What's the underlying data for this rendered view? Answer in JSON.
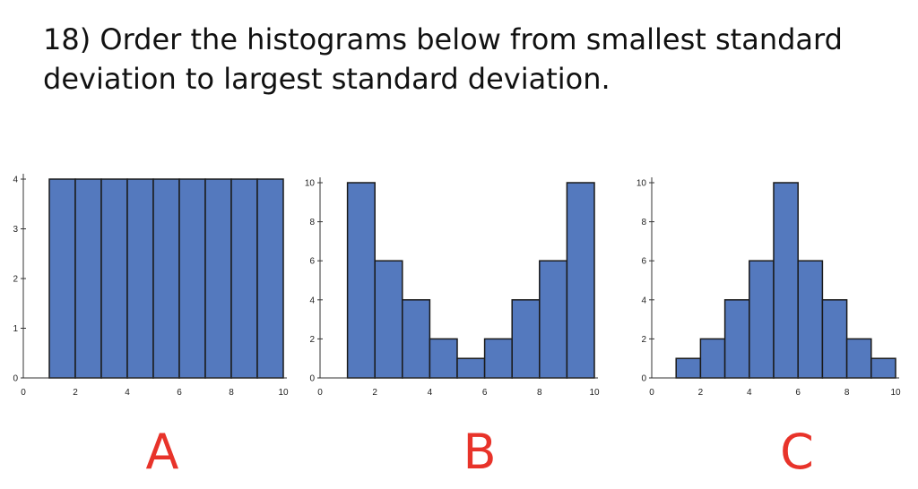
{
  "question": {
    "line1": "18)  Order the histograms below from smallest standard",
    "line2": "deviation to largest standard deviation."
  },
  "colors": {
    "bar_fill": "#5479be",
    "bar_stroke": "#1a1a1a",
    "axis": "#333333",
    "label": "#e8332a"
  },
  "chart_data": [
    {
      "type": "bar",
      "label": "A",
      "x_ticks": [
        0,
        2,
        4,
        6,
        8,
        10
      ],
      "y_ticks": [
        0,
        1,
        2,
        3,
        4
      ],
      "xlim": [
        0,
        10
      ],
      "ylim": [
        0,
        4
      ],
      "bins": [
        [
          1,
          2
        ],
        [
          2,
          3
        ],
        [
          3,
          4
        ],
        [
          4,
          5
        ],
        [
          5,
          6
        ],
        [
          6,
          7
        ],
        [
          7,
          8
        ],
        [
          8,
          9
        ],
        [
          9,
          10
        ]
      ],
      "values": [
        4,
        4,
        4,
        4,
        4,
        4,
        4,
        4,
        4
      ]
    },
    {
      "type": "bar",
      "label": "B",
      "x_ticks": [
        0,
        2,
        4,
        6,
        8,
        10
      ],
      "y_ticks": [
        0,
        2,
        4,
        6,
        8,
        10
      ],
      "xlim": [
        0,
        10
      ],
      "ylim": [
        0,
        10
      ],
      "bins": [
        [
          1,
          2
        ],
        [
          2,
          3
        ],
        [
          3,
          4
        ],
        [
          4,
          5
        ],
        [
          5,
          6
        ],
        [
          6,
          7
        ],
        [
          7,
          8
        ],
        [
          8,
          9
        ],
        [
          9,
          10
        ]
      ],
      "values": [
        10,
        6,
        4,
        2,
        1,
        2,
        4,
        6,
        10
      ]
    },
    {
      "type": "bar",
      "label": "C",
      "x_ticks": [
        0,
        2,
        4,
        6,
        8,
        10
      ],
      "y_ticks": [
        0,
        2,
        4,
        6,
        8,
        10
      ],
      "xlim": [
        0,
        10
      ],
      "ylim": [
        0,
        10
      ],
      "bins": [
        [
          1,
          2
        ],
        [
          2,
          3
        ],
        [
          3,
          4
        ],
        [
          4,
          5
        ],
        [
          5,
          6
        ],
        [
          6,
          7
        ],
        [
          7,
          8
        ],
        [
          8,
          9
        ],
        [
          9,
          10
        ]
      ],
      "values": [
        1,
        2,
        4,
        6,
        10,
        6,
        4,
        2,
        1
      ]
    }
  ]
}
